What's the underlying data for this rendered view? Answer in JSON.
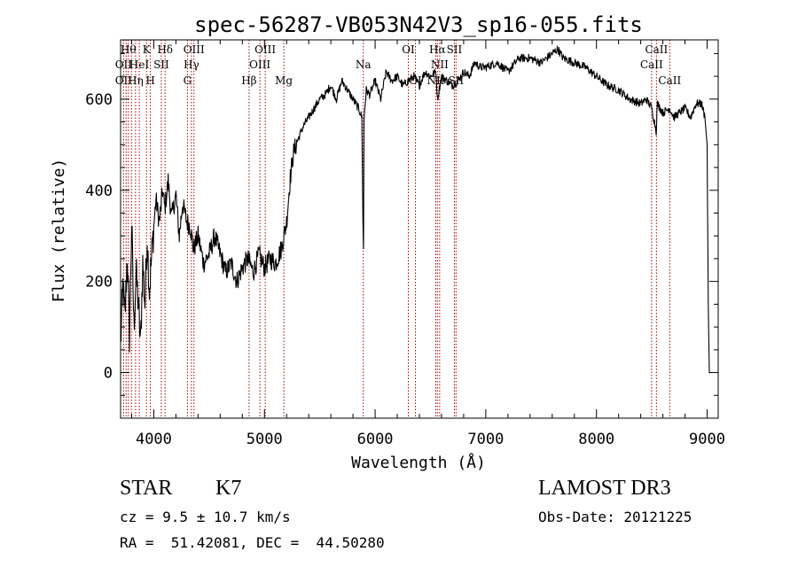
{
  "chart_data": {
    "type": "line",
    "title": "spec-56287-VB053N42V3_sp16-055.fits",
    "xlabel": "Wavelength (Å)",
    "ylabel": "Flux (relative)",
    "xlim": [
      3700,
      9100
    ],
    "ylim": [
      -100,
      730
    ],
    "x_ticks": [
      4000,
      5000,
      6000,
      7000,
      8000,
      9000
    ],
    "y_ticks": [
      0,
      200,
      400,
      600
    ],
    "x_tick_labels": [
      "4000",
      "5000",
      "6000",
      "7000",
      "8000",
      "9000"
    ],
    "y_tick_labels": [
      "0",
      "200",
      "400",
      "600"
    ],
    "series": [
      {
        "color": "#000000",
        "x": [
          3700,
          3720,
          3740,
          3760,
          3780,
          3800,
          3820,
          3840,
          3860,
          3880,
          3900,
          3920,
          3940,
          3960,
          3980,
          4000,
          4020,
          4050,
          4080,
          4100,
          4130,
          4160,
          4200,
          4230,
          4260,
          4300,
          4330,
          4360,
          4400,
          4450,
          4500,
          4550,
          4600,
          4650,
          4700,
          4750,
          4800,
          4850,
          4900,
          4950,
          5000,
          5050,
          5100,
          5150,
          5200,
          5230,
          5260,
          5300,
          5350,
          5400,
          5450,
          5500,
          5550,
          5600,
          5650,
          5700,
          5750,
          5800,
          5850,
          5880,
          5890,
          5895,
          5900,
          5920,
          5950,
          6000,
          6050,
          6100,
          6150,
          6200,
          6250,
          6300,
          6350,
          6400,
          6450,
          6500,
          6550,
          6563,
          6600,
          6650,
          6700,
          6750,
          6800,
          6850,
          6900,
          6950,
          7000,
          7100,
          7200,
          7300,
          7400,
          7500,
          7600,
          7650,
          7700,
          7800,
          7900,
          8000,
          8100,
          8200,
          8300,
          8400,
          8450,
          8500,
          8540,
          8550,
          8600,
          8660,
          8700,
          8750,
          8800,
          8850,
          8900,
          8950,
          8980,
          9000,
          9010,
          9020,
          9030
        ],
        "y": [
          60,
          190,
          120,
          260,
          80,
          330,
          100,
          220,
          150,
          60,
          240,
          150,
          300,
          180,
          250,
          320,
          380,
          330,
          400,
          360,
          420,
          340,
          390,
          300,
          370,
          330,
          320,
          270,
          300,
          240,
          260,
          300,
          260,
          220,
          240,
          200,
          230,
          250,
          220,
          260,
          230,
          250,
          240,
          270,
          330,
          420,
          480,
          510,
          540,
          560,
          580,
          600,
          610,
          630,
          600,
          640,
          620,
          600,
          580,
          560,
          330,
          270,
          560,
          620,
          610,
          640,
          600,
          660,
          640,
          650,
          630,
          640,
          650,
          630,
          660,
          650,
          660,
          600,
          650,
          640,
          630,
          640,
          660,
          650,
          680,
          670,
          670,
          680,
          660,
          690,
          690,
          680,
          700,
          710,
          690,
          680,
          670,
          650,
          630,
          620,
          600,
          590,
          600,
          580,
          530,
          590,
          570,
          580,
          560,
          570,
          580,
          560,
          590,
          590,
          560,
          500,
          150,
          0,
          0
        ]
      }
    ],
    "line_markers": [
      {
        "wavelength": 3727,
        "label": "OII"
      },
      {
        "wavelength": 3750,
        "label": "OII"
      },
      {
        "wavelength": 3770,
        "label": "Hθ"
      },
      {
        "wavelength": 3798,
        "label": "Hη"
      },
      {
        "wavelength": 3835,
        "label": "Hη"
      },
      {
        "wavelength": 3869,
        "label": "HeI"
      },
      {
        "wavelength": 3934,
        "label": "K"
      },
      {
        "wavelength": 3969,
        "label": "H"
      },
      {
        "wavelength": 4068,
        "label": "SII"
      },
      {
        "wavelength": 4102,
        "label": "Hδ"
      },
      {
        "wavelength": 4304,
        "label": "G"
      },
      {
        "wavelength": 4340,
        "label": "Hγ"
      },
      {
        "wavelength": 4363,
        "label": "OIII"
      },
      {
        "wavelength": 4861,
        "label": "Hβ"
      },
      {
        "wavelength": 4959,
        "label": "OIII"
      },
      {
        "wavelength": 5007,
        "label": "OIII"
      },
      {
        "wavelength": 5175,
        "label": "Mg"
      },
      {
        "wavelength": 5893,
        "label": "Na"
      },
      {
        "wavelength": 6300,
        "label": "OI"
      },
      {
        "wavelength": 6364,
        "label": "OI"
      },
      {
        "wavelength": 6548,
        "label": "NII"
      },
      {
        "wavelength": 6563,
        "label": "Hα"
      },
      {
        "wavelength": 6583,
        "label": "NII"
      },
      {
        "wavelength": 6716,
        "label": "SII"
      },
      {
        "wavelength": 6731,
        "label": "SII"
      },
      {
        "wavelength": 8498,
        "label": "CaII"
      },
      {
        "wavelength": 8542,
        "label": "CaII"
      },
      {
        "wavelength": 8662,
        "label": "CaII"
      }
    ],
    "line_labels": [
      {
        "text": "Hθ",
        "row": 0,
        "wavelength": 3770
      },
      {
        "text": "K",
        "row": 0,
        "wavelength": 3934
      },
      {
        "text": "Hδ",
        "row": 0,
        "wavelength": 4102
      },
      {
        "text": "OIII",
        "row": 0,
        "wavelength": 4363
      },
      {
        "text": "OIII",
        "row": 0,
        "wavelength": 5007
      },
      {
        "text": "OI",
        "row": 0,
        "wavelength": 6300
      },
      {
        "text": "Hα",
        "row": 0,
        "wavelength": 6563
      },
      {
        "text": "SII",
        "row": 0,
        "wavelength": 6716
      },
      {
        "text": "CaII",
        "row": 0,
        "wavelength": 8542
      },
      {
        "text": "OII",
        "row": 1,
        "wavelength": 3727
      },
      {
        "text": "HeI",
        "row": 1,
        "wavelength": 3869
      },
      {
        "text": "SII",
        "row": 1,
        "wavelength": 4068
      },
      {
        "text": "Hγ",
        "row": 1,
        "wavelength": 4340
      },
      {
        "text": "OIII",
        "row": 1,
        "wavelength": 4959
      },
      {
        "text": "Na",
        "row": 1,
        "wavelength": 5893
      },
      {
        "text": "NII",
        "row": 1,
        "wavelength": 6583
      },
      {
        "text": "CaII",
        "row": 1,
        "wavelength": 8498
      },
      {
        "text": "OII",
        "row": 2,
        "wavelength": 3727
      },
      {
        "text": "Hη",
        "row": 2,
        "wavelength": 3835
      },
      {
        "text": "H",
        "row": 2,
        "wavelength": 3969
      },
      {
        "text": "G",
        "row": 2,
        "wavelength": 4304
      },
      {
        "text": "Hβ",
        "row": 2,
        "wavelength": 4861
      },
      {
        "text": "Mg",
        "row": 2,
        "wavelength": 5175
      },
      {
        "text": "OI",
        "row": 2,
        "wavelength": 6364
      },
      {
        "text": "NII",
        "row": 2,
        "wavelength": 6548
      },
      {
        "text": "SII",
        "row": 2,
        "wavelength": 6731
      },
      {
        "text": "CaII",
        "row": 2,
        "wavelength": 8662
      }
    ],
    "marker_color": "#b00000"
  },
  "footer": {
    "object_type": "STAR",
    "subclass": "K7",
    "redshift": "cz = 9.5 ± 10.7 km/s",
    "coords": "RA =  51.42081, DEC =  44.50280",
    "survey": "LAMOST DR3",
    "obs_date": "Obs-Date: 20121225"
  }
}
